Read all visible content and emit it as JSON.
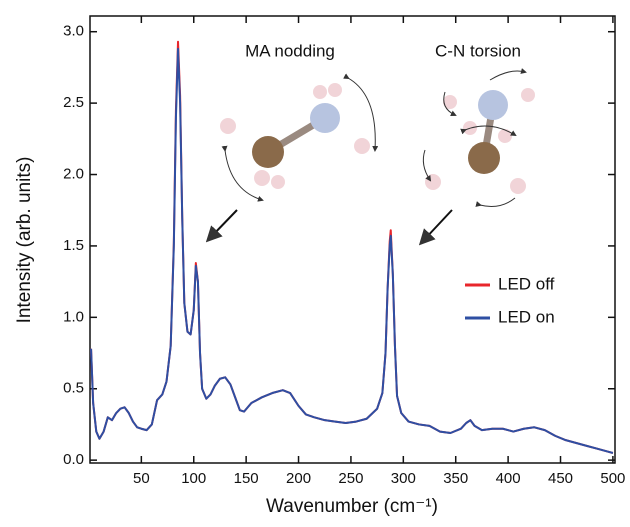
{
  "chart_data": {
    "type": "line",
    "x_label": "Wavenumber (cm⁻¹)",
    "y_label": "Intensity (arb. units)",
    "annotations": [
      "MA nodding",
      "C-N torsion"
    ],
    "x": [
      2,
      4,
      7,
      10,
      14,
      18,
      22,
      26,
      30,
      34,
      38,
      42,
      46,
      50,
      55,
      60,
      65,
      70,
      74,
      78,
      81,
      83,
      85,
      87,
      89,
      91,
      94,
      97,
      100,
      102,
      104,
      106,
      108,
      112,
      116,
      120,
      125,
      130,
      135,
      140,
      144,
      148,
      155,
      165,
      175,
      185,
      192,
      200,
      207,
      215,
      225,
      235,
      245,
      255,
      265,
      275,
      280,
      283,
      285,
      287,
      288,
      290,
      292,
      294,
      298,
      305,
      315,
      325,
      335,
      345,
      355,
      360,
      364,
      368,
      375,
      385,
      395,
      405,
      415,
      425,
      435,
      445,
      455,
      465,
      475,
      485,
      495,
      500
    ],
    "series": [
      {
        "name": "LED off",
        "color": "#e8262b",
        "values": [
          0.78,
          0.4,
          0.2,
          0.15,
          0.2,
          0.3,
          0.28,
          0.33,
          0.36,
          0.37,
          0.33,
          0.27,
          0.23,
          0.22,
          0.21,
          0.25,
          0.42,
          0.46,
          0.55,
          0.8,
          1.52,
          2.45,
          2.93,
          2.55,
          1.7,
          1.1,
          0.9,
          0.88,
          1.05,
          1.38,
          1.25,
          0.75,
          0.5,
          0.43,
          0.46,
          0.52,
          0.57,
          0.58,
          0.53,
          0.43,
          0.35,
          0.34,
          0.4,
          0.44,
          0.47,
          0.49,
          0.47,
          0.38,
          0.32,
          0.3,
          0.28,
          0.27,
          0.26,
          0.27,
          0.29,
          0.36,
          0.47,
          0.75,
          1.2,
          1.53,
          1.61,
          1.3,
          0.8,
          0.45,
          0.33,
          0.27,
          0.25,
          0.24,
          0.2,
          0.19,
          0.22,
          0.26,
          0.28,
          0.24,
          0.21,
          0.22,
          0.22,
          0.2,
          0.22,
          0.23,
          0.21,
          0.17,
          0.14,
          0.12,
          0.1,
          0.08,
          0.06,
          0.05
        ]
      },
      {
        "name": "LED on",
        "color": "#2e4fa3",
        "values": [
          0.78,
          0.4,
          0.2,
          0.15,
          0.2,
          0.3,
          0.28,
          0.33,
          0.36,
          0.37,
          0.33,
          0.27,
          0.23,
          0.22,
          0.21,
          0.25,
          0.42,
          0.46,
          0.55,
          0.8,
          1.5,
          2.4,
          2.88,
          2.5,
          1.7,
          1.1,
          0.9,
          0.88,
          1.05,
          1.36,
          1.25,
          0.75,
          0.5,
          0.43,
          0.46,
          0.52,
          0.57,
          0.58,
          0.53,
          0.43,
          0.35,
          0.34,
          0.4,
          0.44,
          0.47,
          0.49,
          0.47,
          0.38,
          0.32,
          0.3,
          0.28,
          0.27,
          0.26,
          0.27,
          0.29,
          0.36,
          0.47,
          0.75,
          1.2,
          1.5,
          1.57,
          1.3,
          0.8,
          0.45,
          0.33,
          0.27,
          0.25,
          0.24,
          0.2,
          0.19,
          0.22,
          0.26,
          0.28,
          0.24,
          0.21,
          0.22,
          0.22,
          0.2,
          0.22,
          0.23,
          0.21,
          0.17,
          0.14,
          0.12,
          0.1,
          0.08,
          0.06,
          0.05
        ]
      }
    ],
    "xlim": [
      1,
      502
    ],
    "ylim": [
      -0.02,
      3.11
    ],
    "xticks": [
      50,
      100,
      150,
      200,
      250,
      300,
      350,
      400,
      450,
      500
    ],
    "yticks": [
      {
        "value": 0,
        "label": "0.0"
      },
      0.5,
      {
        "value": 1,
        "label": "1.0"
      },
      1.5,
      {
        "value": 2,
        "label": "2.0"
      },
      2.5,
      {
        "value": 3,
        "label": "3.0"
      }
    ],
    "grid": false
  }
}
